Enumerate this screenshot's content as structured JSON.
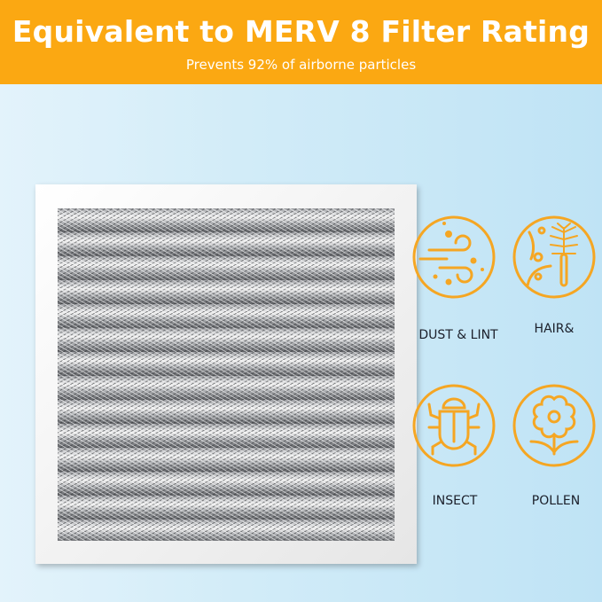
{
  "banner": {
    "title": "Equivalent to MERV 8  Filter Rating",
    "subtitle": "Prevents 92% of airborne particles",
    "color": "#fba812"
  },
  "features": [
    {
      "label": "DUST & LINT",
      "icon": "dust-wind-icon"
    },
    {
      "label": "HAIR&",
      "icon": "hair-brush-icon"
    },
    {
      "label": "INSECT",
      "icon": "insect-icon"
    },
    {
      "label": "POLLEN",
      "icon": "flower-icon"
    }
  ],
  "accent_color": "#f5a623"
}
